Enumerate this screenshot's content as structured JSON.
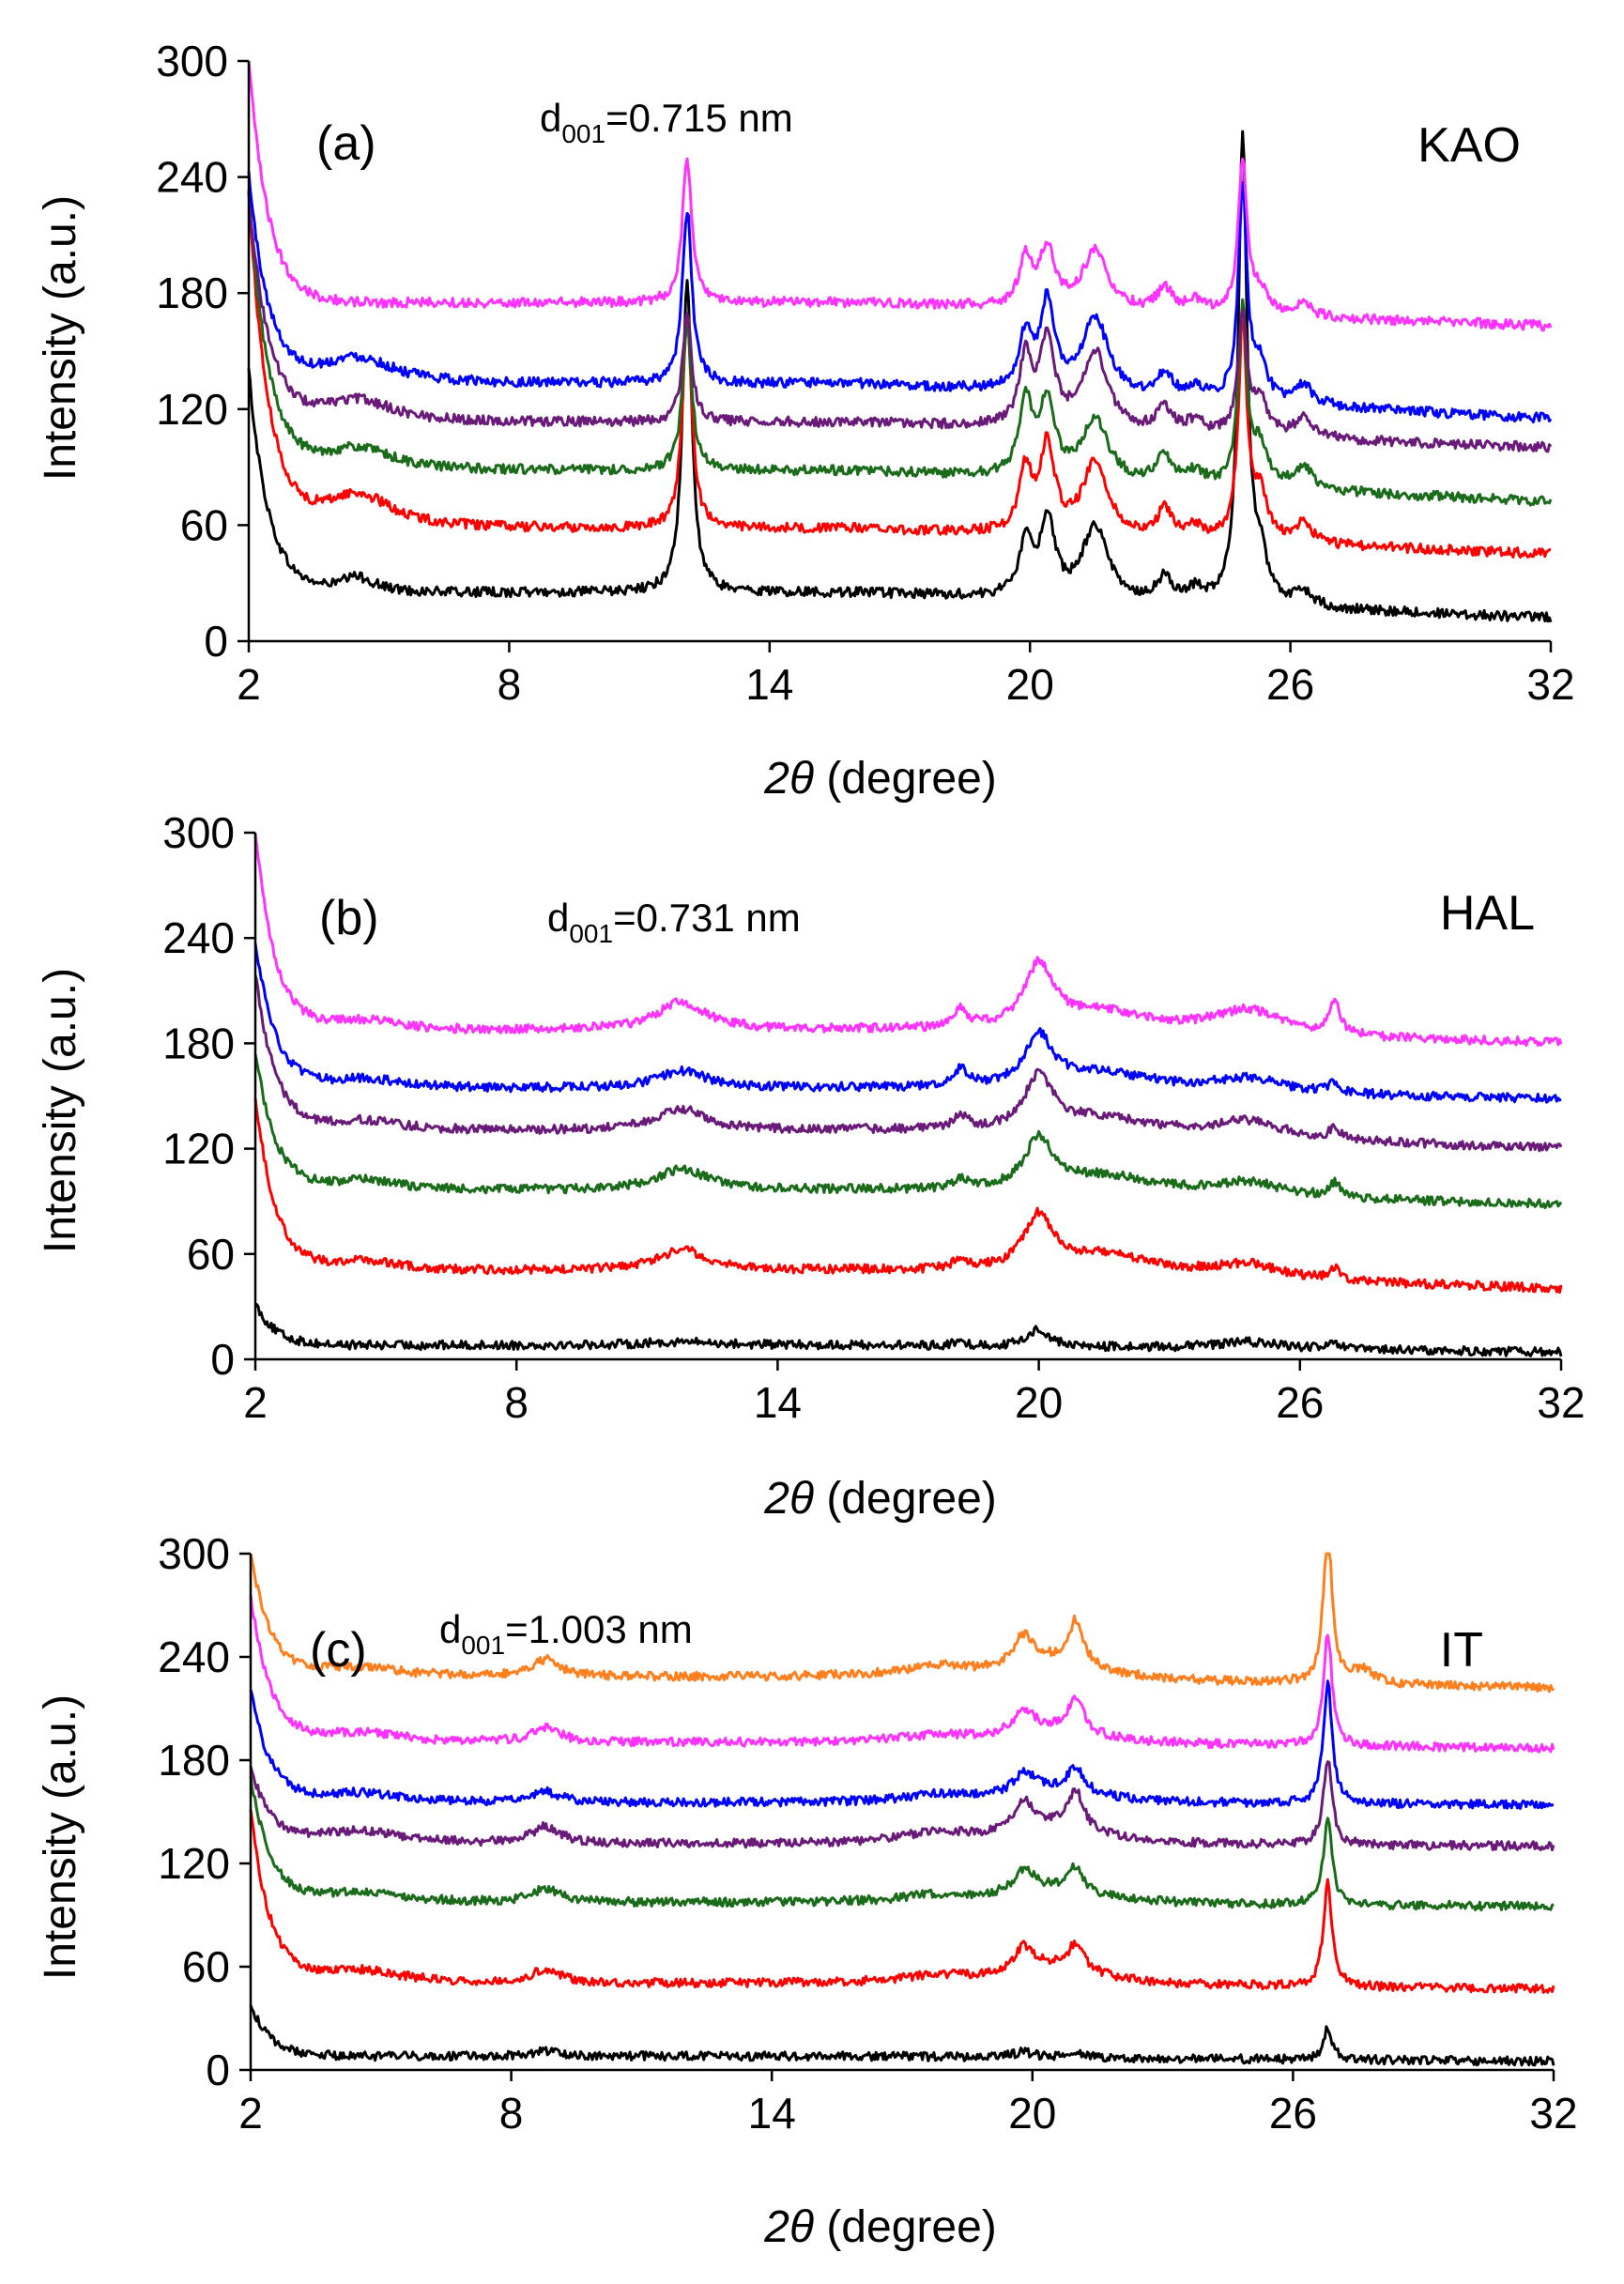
{
  "figure": {
    "panels": [
      {
        "panel_label": "(a)",
        "sample": "KAO",
        "annotation": {
          "prefix": "d",
          "sub": "001",
          "suffix": "=0.715 nm"
        },
        "ylabel": "Intensity (a.u.)",
        "xlabel_symbol": "2θ",
        "xlabel_rest": " (degree)",
        "xticks": [
          "2",
          "8",
          "14",
          "20",
          "26",
          "32"
        ],
        "yticks": [
          "0",
          "60",
          "120",
          "180",
          "240",
          "300"
        ]
      },
      {
        "panel_label": "(b)",
        "sample": "HAL",
        "annotation": {
          "prefix": "d",
          "sub": "001",
          "suffix": "=0.731 nm"
        },
        "ylabel": "Intensity (a.u.)",
        "xlabel_symbol": "2θ",
        "xlabel_rest": " (degree)",
        "xticks": [
          "2",
          "8",
          "14",
          "20",
          "26",
          "32"
        ],
        "yticks": [
          "0",
          "60",
          "120",
          "180",
          "240",
          "300"
        ]
      },
      {
        "panel_label": "(c)",
        "sample": "IT",
        "annotation": {
          "prefix": "d",
          "sub": "001",
          "suffix": "=1.003 nm"
        },
        "ylabel": "Intensity (a.u.)",
        "xlabel_symbol": "2θ",
        "xlabel_rest": " (degree)",
        "xticks": [
          "2",
          "8",
          "14",
          "20",
          "26",
          "32"
        ],
        "yticks": [
          "0",
          "60",
          "120",
          "180",
          "240",
          "300"
        ]
      }
    ]
  },
  "chart_data": [
    {
      "type": "line",
      "panel": "(a)",
      "sample": "KAO",
      "xlabel": "2θ (degree)",
      "ylabel": "Intensity (a.u.)",
      "xlim": [
        2,
        32
      ],
      "ylim": [
        0,
        300
      ],
      "xticks": [
        2,
        8,
        14,
        20,
        26,
        32
      ],
      "yticks": [
        0,
        60,
        120,
        180,
        240,
        300
      ],
      "grid": false,
      "series": [
        {
          "color": "#000000",
          "baseline": 25,
          "start": 140,
          "end": 12,
          "peaks": [
            [
              4.5,
              8,
              0.5
            ],
            [
              12.1,
              160,
              0.13
            ],
            [
              19.9,
              28,
              0.18
            ],
            [
              20.4,
              40,
              0.2
            ],
            [
              21.5,
              38,
              0.35
            ],
            [
              23.1,
              12,
              0.2
            ],
            [
              23.8,
              6,
              0.25
            ],
            [
              24.9,
              240,
              0.12
            ],
            [
              25.3,
              22,
              0.2
            ],
            [
              26.3,
              8,
              0.25
            ]
          ]
        },
        {
          "color": "#ff0000",
          "baseline": 58,
          "start": 230,
          "end": 45,
          "peaks": [
            [
              4.5,
              18,
              1.0
            ],
            [
              12.1,
              110,
              0.13
            ],
            [
              19.9,
              32,
              0.18
            ],
            [
              20.4,
              45,
              0.2
            ],
            [
              21.5,
              38,
              0.35
            ],
            [
              23.1,
              14,
              0.2
            ],
            [
              23.8,
              6,
              0.25
            ],
            [
              24.9,
              110,
              0.12
            ],
            [
              25.3,
              24,
              0.2
            ],
            [
              26.3,
              10,
              0.25
            ]
          ]
        },
        {
          "color": "#1a6b1a",
          "baseline": 88,
          "start": 230,
          "end": 72,
          "peaks": [
            [
              4.5,
              12,
              1.0
            ],
            [
              12.1,
              75,
              0.13
            ],
            [
              19.9,
              40,
              0.18
            ],
            [
              20.4,
              40,
              0.2
            ],
            [
              21.5,
              32,
              0.35
            ],
            [
              23.1,
              14,
              0.2
            ],
            [
              23.8,
              6,
              0.25
            ],
            [
              24.9,
              90,
              0.12
            ],
            [
              25.3,
              20,
              0.2
            ],
            [
              26.3,
              12,
              0.25
            ]
          ]
        },
        {
          "color": "#6a1b7a",
          "baseline": 113,
          "start": 230,
          "end": 100,
          "peaks": [
            [
              4.5,
              12,
              1.0
            ],
            [
              12.1,
              55,
              0.13
            ],
            [
              19.9,
              35,
              0.18
            ],
            [
              20.4,
              45,
              0.2
            ],
            [
              21.5,
              40,
              0.35
            ],
            [
              23.1,
              12,
              0.2
            ],
            [
              23.8,
              6,
              0.25
            ],
            [
              24.9,
              60,
              0.12
            ],
            [
              25.3,
              18,
              0.2
            ],
            [
              26.3,
              10,
              0.25
            ]
          ]
        },
        {
          "color": "#0000ff",
          "baseline": 133,
          "start": 240,
          "end": 115,
          "peaks": [
            [
              4.5,
              14,
              1.0
            ],
            [
              12.1,
              90,
              0.13
            ],
            [
              19.9,
              28,
              0.18
            ],
            [
              20.4,
              45,
              0.2
            ],
            [
              21.5,
              40,
              0.35
            ],
            [
              23.1,
              12,
              0.2
            ],
            [
              23.8,
              6,
              0.25
            ],
            [
              24.9,
              110,
              0.12
            ],
            [
              25.3,
              18,
              0.2
            ],
            [
              26.3,
              10,
              0.25
            ]
          ]
        },
        {
          "color": "#ff33ff",
          "baseline": 175,
          "start": 300,
          "end": 163,
          "peaks": [
            [
              12.1,
              75,
              0.13
            ],
            [
              19.9,
              25,
              0.18
            ],
            [
              20.4,
              30,
              0.2
            ],
            [
              21.5,
              30,
              0.35
            ],
            [
              23.1,
              12,
              0.2
            ],
            [
              23.8,
              6,
              0.25
            ],
            [
              24.9,
              80,
              0.12
            ],
            [
              25.3,
              12,
              0.2
            ],
            [
              26.3,
              6,
              0.25
            ]
          ]
        }
      ]
    },
    {
      "type": "line",
      "panel": "(b)",
      "sample": "HAL",
      "xlabel": "2θ (degree)",
      "ylabel": "Intensity (a.u.)",
      "xlim": [
        2,
        32
      ],
      "ylim": [
        0,
        300
      ],
      "xticks": [
        2,
        8,
        14,
        20,
        26,
        32
      ],
      "yticks": [
        0,
        60,
        120,
        180,
        240,
        300
      ],
      "grid": false,
      "series": [
        {
          "color": "#000000",
          "baseline": 8,
          "start": 32,
          "end": 4,
          "peaks": [
            [
              11.8,
              2,
              1.0
            ],
            [
              18.2,
              2,
              0.2
            ],
            [
              20.0,
              10,
              0.3
            ],
            [
              24.8,
              4,
              1.0
            ],
            [
              26.8,
              3,
              0.15
            ]
          ]
        },
        {
          "color": "#ff0000",
          "baseline": 50,
          "start": 150,
          "end": 40,
          "peaks": [
            [
              4.5,
              6,
              1.0
            ],
            [
              11.8,
              12,
              0.7
            ],
            [
              18.2,
              6,
              0.2
            ],
            [
              20.0,
              30,
              0.4
            ],
            [
              21.5,
              12,
              1.5
            ],
            [
              24.8,
              8,
              1.0
            ],
            [
              26.8,
              6,
              0.15
            ]
          ]
        },
        {
          "color": "#1a6b1a",
          "baseline": 96,
          "start": 175,
          "end": 88,
          "peaks": [
            [
              4.5,
              6,
              1.0
            ],
            [
              11.8,
              12,
              0.7
            ],
            [
              18.2,
              6,
              0.2
            ],
            [
              20.0,
              28,
              0.4
            ],
            [
              21.5,
              10,
              1.5
            ],
            [
              24.8,
              8,
              1.0
            ],
            [
              26.8,
              8,
              0.15
            ]
          ]
        },
        {
          "color": "#6a1b7a",
          "baseline": 130,
          "start": 220,
          "end": 120,
          "peaks": [
            [
              4.5,
              6,
              1.0
            ],
            [
              11.8,
              12,
              0.7
            ],
            [
              18.2,
              8,
              0.2
            ],
            [
              20.0,
              30,
              0.4
            ],
            [
              21.5,
              10,
              1.5
            ],
            [
              24.8,
              10,
              1.0
            ],
            [
              26.8,
              6,
              0.15
            ]
          ]
        },
        {
          "color": "#0000ff",
          "baseline": 154,
          "start": 238,
          "end": 148,
          "peaks": [
            [
              4.5,
              6,
              1.0
            ],
            [
              11.8,
              10,
              0.7
            ],
            [
              18.2,
              10,
              0.2
            ],
            [
              20.0,
              28,
              0.4
            ],
            [
              21.5,
              10,
              1.5
            ],
            [
              24.8,
              8,
              1.0
            ],
            [
              26.8,
              6,
              0.15
            ]
          ]
        },
        {
          "color": "#ff33ff",
          "baseline": 187,
          "start": 300,
          "end": 180,
          "peaks": [
            [
              4.5,
              6,
              1.0
            ],
            [
              11.8,
              16,
              0.7
            ],
            [
              18.2,
              10,
              0.2
            ],
            [
              20.0,
              35,
              0.4
            ],
            [
              21.5,
              12,
              1.5
            ],
            [
              24.8,
              14,
              1.0
            ],
            [
              26.8,
              18,
              0.15
            ]
          ]
        }
      ]
    },
    {
      "type": "line",
      "panel": "(c)",
      "sample": "IT",
      "xlabel": "2θ (degree)",
      "ylabel": "Intensity (a.u.)",
      "xlim": [
        2,
        32
      ],
      "ylim": [
        0,
        300
      ],
      "xticks": [
        2,
        8,
        14,
        20,
        26,
        32
      ],
      "yticks": [
        0,
        60,
        120,
        180,
        240,
        300
      ],
      "grid": false,
      "series": [
        {
          "color": "#000000",
          "baseline": 8,
          "start": 38,
          "end": 5,
          "peaks": [
            [
              8.8,
              3,
              0.4
            ],
            [
              19.8,
              3,
              0.3
            ],
            [
              21.0,
              4,
              0.2
            ],
            [
              26.8,
              18,
              0.12
            ]
          ]
        },
        {
          "color": "#ff0000",
          "baseline": 50,
          "start": 150,
          "end": 47,
          "peaks": [
            [
              4.5,
              8,
              1.2
            ],
            [
              8.8,
              8,
              0.4
            ],
            [
              17.8,
              4,
              1.0
            ],
            [
              19.8,
              15,
              0.3
            ],
            [
              21.0,
              15,
              0.2
            ],
            [
              20.6,
              10,
              1.2
            ],
            [
              26.8,
              60,
              0.12
            ]
          ]
        },
        {
          "color": "#1a6b1a",
          "baseline": 97,
          "start": 170,
          "end": 95,
          "peaks": [
            [
              4.5,
              6,
              1.2
            ],
            [
              8.8,
              8,
              0.4
            ],
            [
              17.8,
              4,
              1.0
            ],
            [
              19.8,
              14,
              0.3
            ],
            [
              21.0,
              14,
              0.2
            ],
            [
              20.6,
              8,
              1.2
            ],
            [
              26.8,
              50,
              0.12
            ]
          ]
        },
        {
          "color": "#6a1b7a",
          "baseline": 131,
          "start": 175,
          "end": 130,
          "peaks": [
            [
              4.5,
              8,
              1.2
            ],
            [
              8.8,
              10,
              0.4
            ],
            [
              17.8,
              6,
              1.0
            ],
            [
              19.8,
              18,
              0.3
            ],
            [
              21.0,
              22,
              0.2
            ],
            [
              20.6,
              10,
              1.2
            ],
            [
              26.8,
              50,
              0.12
            ]
          ]
        },
        {
          "color": "#0000ff",
          "baseline": 155,
          "start": 220,
          "end": 154,
          "peaks": [
            [
              4.5,
              6,
              1.2
            ],
            [
              8.8,
              6,
              0.4
            ],
            [
              17.8,
              4,
              1.0
            ],
            [
              19.8,
              12,
              0.3
            ],
            [
              21.0,
              14,
              0.2
            ],
            [
              20.6,
              8,
              1.2
            ],
            [
              26.8,
              70,
              0.12
            ]
          ]
        },
        {
          "color": "#ff33ff",
          "baseline": 190,
          "start": 275,
          "end": 187,
          "peaks": [
            [
              4.5,
              6,
              1.2
            ],
            [
              8.8,
              8,
              0.4
            ],
            [
              17.8,
              4,
              1.0
            ],
            [
              19.8,
              14,
              0.3
            ],
            [
              21.0,
              20,
              0.2
            ],
            [
              20.6,
              8,
              1.2
            ],
            [
              26.8,
              65,
              0.12
            ]
          ]
        },
        {
          "color": "#ff7f1e",
          "baseline": 228,
          "start": 300,
          "end": 222,
          "peaks": [
            [
              4.5,
              6,
              1.2
            ],
            [
              8.8,
              10,
              0.4
            ],
            [
              17.8,
              6,
              1.0
            ],
            [
              19.8,
              18,
              0.3
            ],
            [
              21.0,
              25,
              0.2
            ],
            [
              20.6,
              10,
              1.2
            ],
            [
              26.8,
              90,
              0.12
            ],
            [
              27.6,
              8,
              0.3
            ]
          ]
        }
      ]
    }
  ]
}
